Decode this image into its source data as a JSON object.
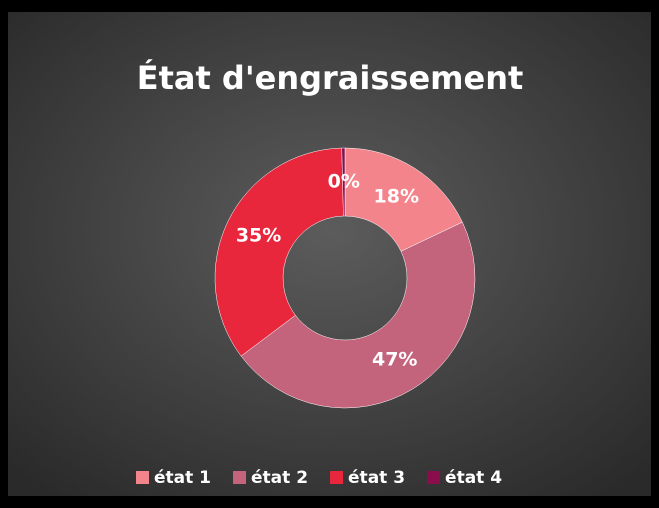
{
  "chart_data": {
    "type": "donut",
    "title": "État d'engraissement",
    "categories": [
      "état 1",
      "état 2",
      "état 3",
      "état 4"
    ],
    "values": [
      18,
      47,
      35,
      0.4
    ],
    "value_labels": [
      "18%",
      "47%",
      "35%",
      "0%"
    ],
    "colors": [
      "#f4848c",
      "#c3637c",
      "#e8263c",
      "#8a0d4c"
    ],
    "legend": "bottom"
  }
}
